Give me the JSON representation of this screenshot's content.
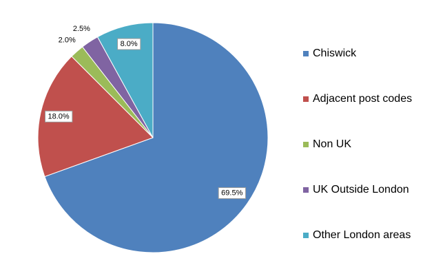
{
  "chart_data": {
    "type": "pie",
    "categories": [
      "Chiswick",
      "Adjacent post codes",
      "Non UK",
      "UK Outside London",
      "Other London areas"
    ],
    "values": [
      69.5,
      18.0,
      2.0,
      2.5,
      8.0
    ],
    "value_labels": [
      "69.5%",
      "18.0%",
      "2.0%",
      "2.5%",
      "8.0%"
    ],
    "colors": [
      "#4f81bd",
      "#c0504d",
      "#9bbb59",
      "#8064a2",
      "#4bacc6"
    ],
    "legend": "right"
  }
}
